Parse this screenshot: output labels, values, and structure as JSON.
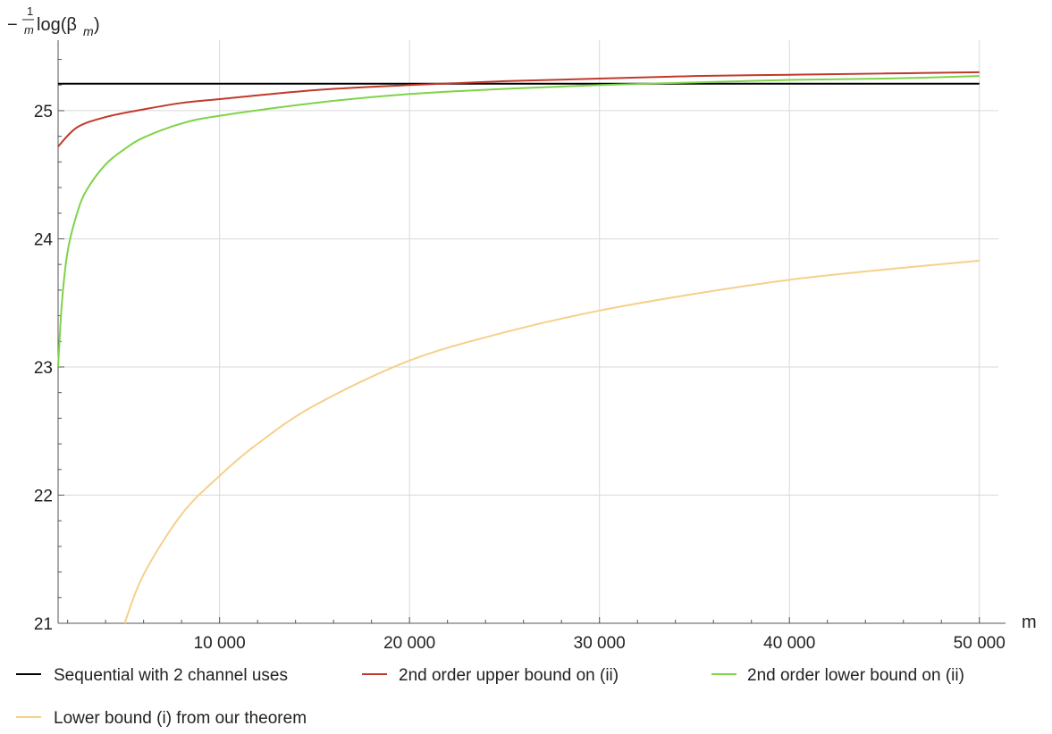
{
  "chart_data": {
    "type": "line",
    "title": "",
    "ylabel": "log(β_m)",
    "xlabel": "m",
    "xlim": [
      1500,
      51000
    ],
    "ylim": [
      21,
      25.55
    ],
    "grid": true,
    "legend_position": "bottom",
    "x_ticks": [
      10000,
      20000,
      30000,
      40000,
      50000
    ],
    "x_tick_labels": [
      "10 000",
      "20 000",
      "30 000",
      "40 000",
      "50 000"
    ],
    "y_ticks": [
      21,
      22,
      23,
      24,
      25
    ],
    "y_tick_labels": [
      "21",
      "22",
      "23",
      "24",
      "25"
    ],
    "series": [
      {
        "name": "Sequential with 2 channel uses",
        "color": "#000000",
        "x": [
          1500,
          50000
        ],
        "values": [
          25.21,
          25.21
        ]
      },
      {
        "name": "2nd order upper bound on (ii)",
        "color": "#c0392b",
        "x": [
          1500,
          2500,
          4000,
          6000,
          8000,
          10000,
          15000,
          20000,
          25000,
          30000,
          35000,
          40000,
          45000,
          50000
        ],
        "values": [
          24.72,
          24.87,
          24.95,
          25.01,
          25.06,
          25.09,
          25.16,
          25.2,
          25.23,
          25.25,
          25.27,
          25.28,
          25.29,
          25.3
        ]
      },
      {
        "name": "2nd order lower bound on (ii)",
        "color": "#7ed348",
        "x": [
          1500,
          1700,
          2000,
          2500,
          3000,
          4000,
          5000,
          6000,
          8000,
          10000,
          15000,
          20000,
          25000,
          30000,
          35000,
          40000,
          45000,
          50000
        ],
        "values": [
          23,
          23.5,
          23.9,
          24.2,
          24.38,
          24.58,
          24.7,
          24.79,
          24.9,
          24.96,
          25.06,
          25.13,
          25.17,
          25.2,
          25.22,
          25.24,
          25.25,
          25.27
        ]
      },
      {
        "name": "Lower bound (i) from our theorem",
        "color": "#f6d08b",
        "x": [
          5000,
          6000,
          8000,
          10000,
          12000,
          15000,
          20000,
          25000,
          30000,
          35000,
          40000,
          45000,
          50000
        ],
        "values": [
          21,
          21.38,
          21.85,
          22.15,
          22.4,
          22.7,
          23.05,
          23.27,
          23.44,
          23.57,
          23.68,
          23.76,
          23.83
        ]
      }
    ]
  },
  "axes": {
    "y_title_prefix": "−",
    "y_title_num": "1",
    "y_title_den": "m",
    "y_title_main": "log(β",
    "y_title_sub": "m",
    "y_title_close": ")",
    "x_title": "m"
  }
}
